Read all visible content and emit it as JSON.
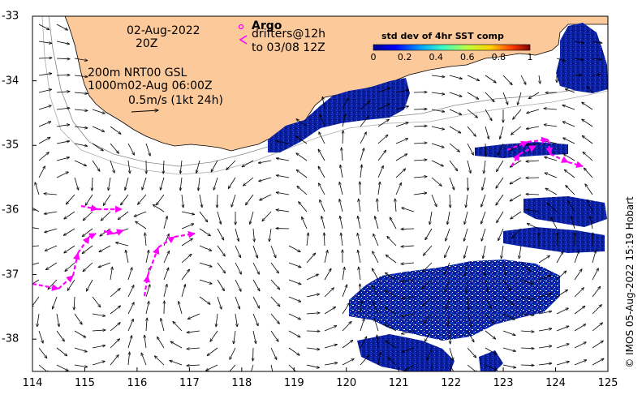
{
  "annotations": {
    "date": "02-Aug-2022",
    "time": "20Z",
    "depth_line1": "200m  NRT00 GSL",
    "depth_line2": "1000m02-Aug 06:00Z",
    "scale_label": "0.5m/s (1kt 24h)",
    "argo_label": "Argo",
    "drifters_line1": "drifters@12h",
    "drifters_line2": "to 03/08 12Z",
    "argo_symbol": "o",
    "drifter_symbol": "<"
  },
  "colorbar": {
    "title": "std dev of 4hr SST comp",
    "ticks": [
      "0",
      "0.2",
      "0.4",
      "0.6",
      "0.8",
      "1"
    ],
    "colors": [
      "#00008f",
      "#0000ff",
      "#00a0ff",
      "#40ffc0",
      "#c0ff40",
      "#ffd000",
      "#ff4000",
      "#800000"
    ]
  },
  "axes": {
    "x_ticks": [
      "114",
      "115",
      "116",
      "117",
      "118",
      "119",
      "120",
      "121",
      "122",
      "123",
      "124",
      "125"
    ],
    "y_ticks": [
      "-33",
      "-34",
      "-35",
      "-36",
      "-37",
      "-38"
    ],
    "lon_range": [
      114,
      125
    ],
    "lat_range": [
      -38.5,
      -33
    ]
  },
  "credit": "© IMOS 05-Aug-2022 15:19 Hobart",
  "colors": {
    "land": "#fcc99b",
    "sst_blue": "#0a1fa0",
    "drifter": "#ff00ff",
    "arrow": "#000000"
  }
}
